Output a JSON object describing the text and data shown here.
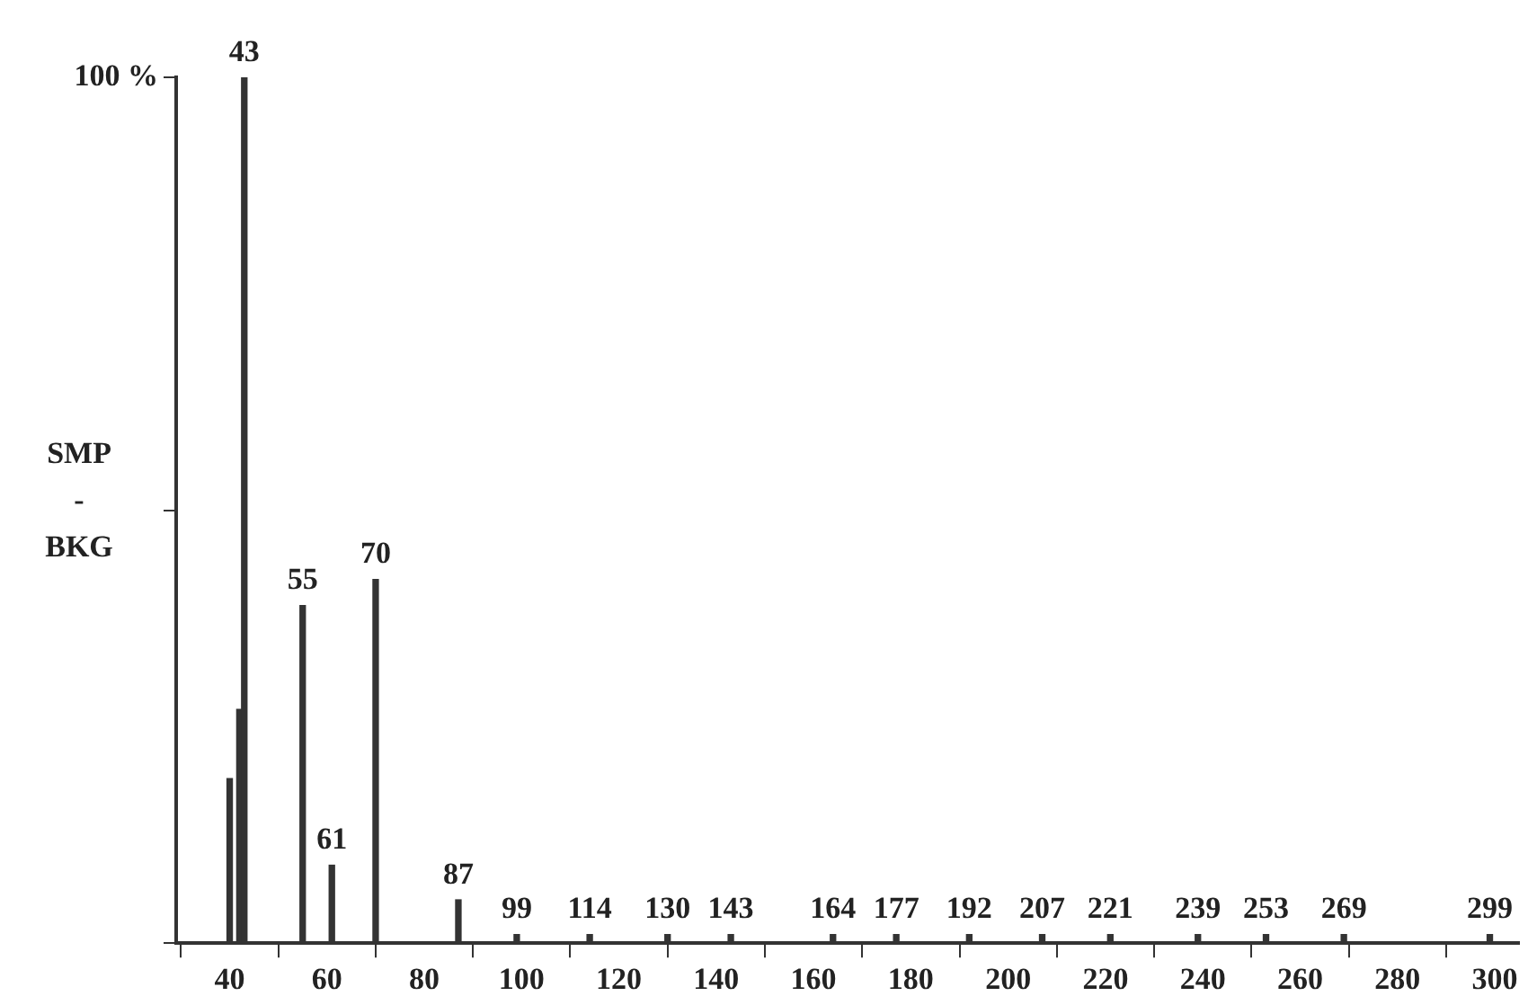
{
  "chart_data": {
    "type": "bar",
    "ylabel": "SMP - BKG",
    "x": [
      40,
      42,
      43,
      55,
      61,
      70,
      87,
      99,
      114,
      130,
      143,
      164,
      177,
      192,
      207,
      221,
      239,
      253,
      269,
      299
    ],
    "values": [
      19,
      27,
      100,
      39,
      9,
      42,
      5,
      1,
      1,
      1,
      1,
      1,
      1,
      1,
      1,
      1,
      1,
      1,
      1,
      1
    ],
    "color": "#333333",
    "annotations": [
      {
        "text": "43",
        "x": 43,
        "y": 100
      },
      {
        "text": "55",
        "x": 55,
        "y": 39
      },
      {
        "text": "61",
        "x": 61,
        "y": 9
      },
      {
        "text": "70",
        "x": 70,
        "y": 42
      },
      {
        "text": "87",
        "x": 87,
        "y": 5
      },
      {
        "text": "99",
        "x": 99,
        "y": 1
      },
      {
        "text": "114",
        "x": 114,
        "y": 1
      },
      {
        "text": "130",
        "x": 130,
        "y": 1
      },
      {
        "text": "143",
        "x": 143,
        "y": 1
      },
      {
        "text": "164",
        "x": 164,
        "y": 1
      },
      {
        "text": "177",
        "x": 177,
        "y": 1
      },
      {
        "text": "192",
        "x": 192,
        "y": 1
      },
      {
        "text": "207",
        "x": 207,
        "y": 1
      },
      {
        "text": "221",
        "x": 221,
        "y": 1
      },
      {
        "text": "239",
        "x": 239,
        "y": 1
      },
      {
        "text": "253",
        "x": 253,
        "y": 1
      },
      {
        "text": "269",
        "x": 269,
        "y": 1
      },
      {
        "text": "299",
        "x": 299,
        "y": 1
      }
    ],
    "xlim": [
      29,
      305
    ],
    "xticks": [
      40,
      60,
      80,
      100,
      120,
      140,
      160,
      180,
      200,
      220,
      240,
      260,
      280,
      300
    ],
    "ylim": [
      0,
      100
    ],
    "yticks": [
      {
        "value": 0,
        "label": null
      },
      {
        "value": 50,
        "label": null
      },
      {
        "value": 100,
        "label": "100 %"
      }
    ],
    "grid": false,
    "legend": false
  }
}
